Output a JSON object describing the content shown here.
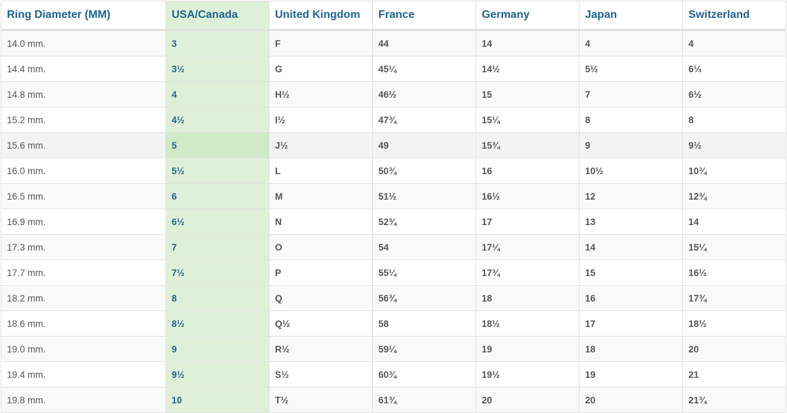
{
  "table": {
    "headers": [
      "Ring Diameter (MM)",
      "USA/Canada",
      "United Kingdom",
      "France",
      "Germany",
      "Japan",
      "Switzerland"
    ],
    "highlight_color": "#dff0d8",
    "header_color": "#1f6394",
    "hovered_row": 4,
    "rows": [
      [
        "14.0 mm.",
        "3",
        "F",
        "44",
        "14",
        "4",
        "4"
      ],
      [
        "14.4 mm.",
        "3½",
        "G",
        "45¼",
        "14½",
        "5½",
        "6⅓"
      ],
      [
        "14.8 mm.",
        "4",
        "H½",
        "46½",
        "15",
        "7",
        "6½"
      ],
      [
        "15.2 mm.",
        "4½",
        "I½",
        "47¾",
        "15¼",
        "8",
        "8"
      ],
      [
        "15.6 mm.",
        "5",
        "J½",
        "49",
        "15¾",
        "9",
        "9½"
      ],
      [
        "16.0 mm.",
        "5½",
        "L",
        "50¾",
        "16",
        "10½",
        "10¾"
      ],
      [
        "16.5 mm.",
        "6",
        "M",
        "51½",
        "16½",
        "12",
        "12¾"
      ],
      [
        "16.9 mm.",
        "6½",
        "N",
        "52¾",
        "17",
        "13",
        "14"
      ],
      [
        "17.3 mm.",
        "7",
        "O",
        "54",
        "17¼",
        "14",
        "15¼"
      ],
      [
        "17.7 mm.",
        "7½",
        "P",
        "55¼",
        "17¾",
        "15",
        "16½"
      ],
      [
        "18.2 mm.",
        "8",
        "Q",
        "56¾",
        "18",
        "16",
        "17¾"
      ],
      [
        "18.6 mm.",
        "8½",
        "Q½",
        "58",
        "18½",
        "17",
        "18½"
      ],
      [
        "19.0 mm.",
        "9",
        "R½",
        "59¼",
        "19",
        "18",
        "20"
      ],
      [
        "19.4 mm.",
        "9½",
        "S½",
        "60¾",
        "19½",
        "19",
        "21"
      ],
      [
        "19.8 mm.",
        "10",
        "T½",
        "61¾",
        "20",
        "20",
        "21¾"
      ]
    ]
  }
}
